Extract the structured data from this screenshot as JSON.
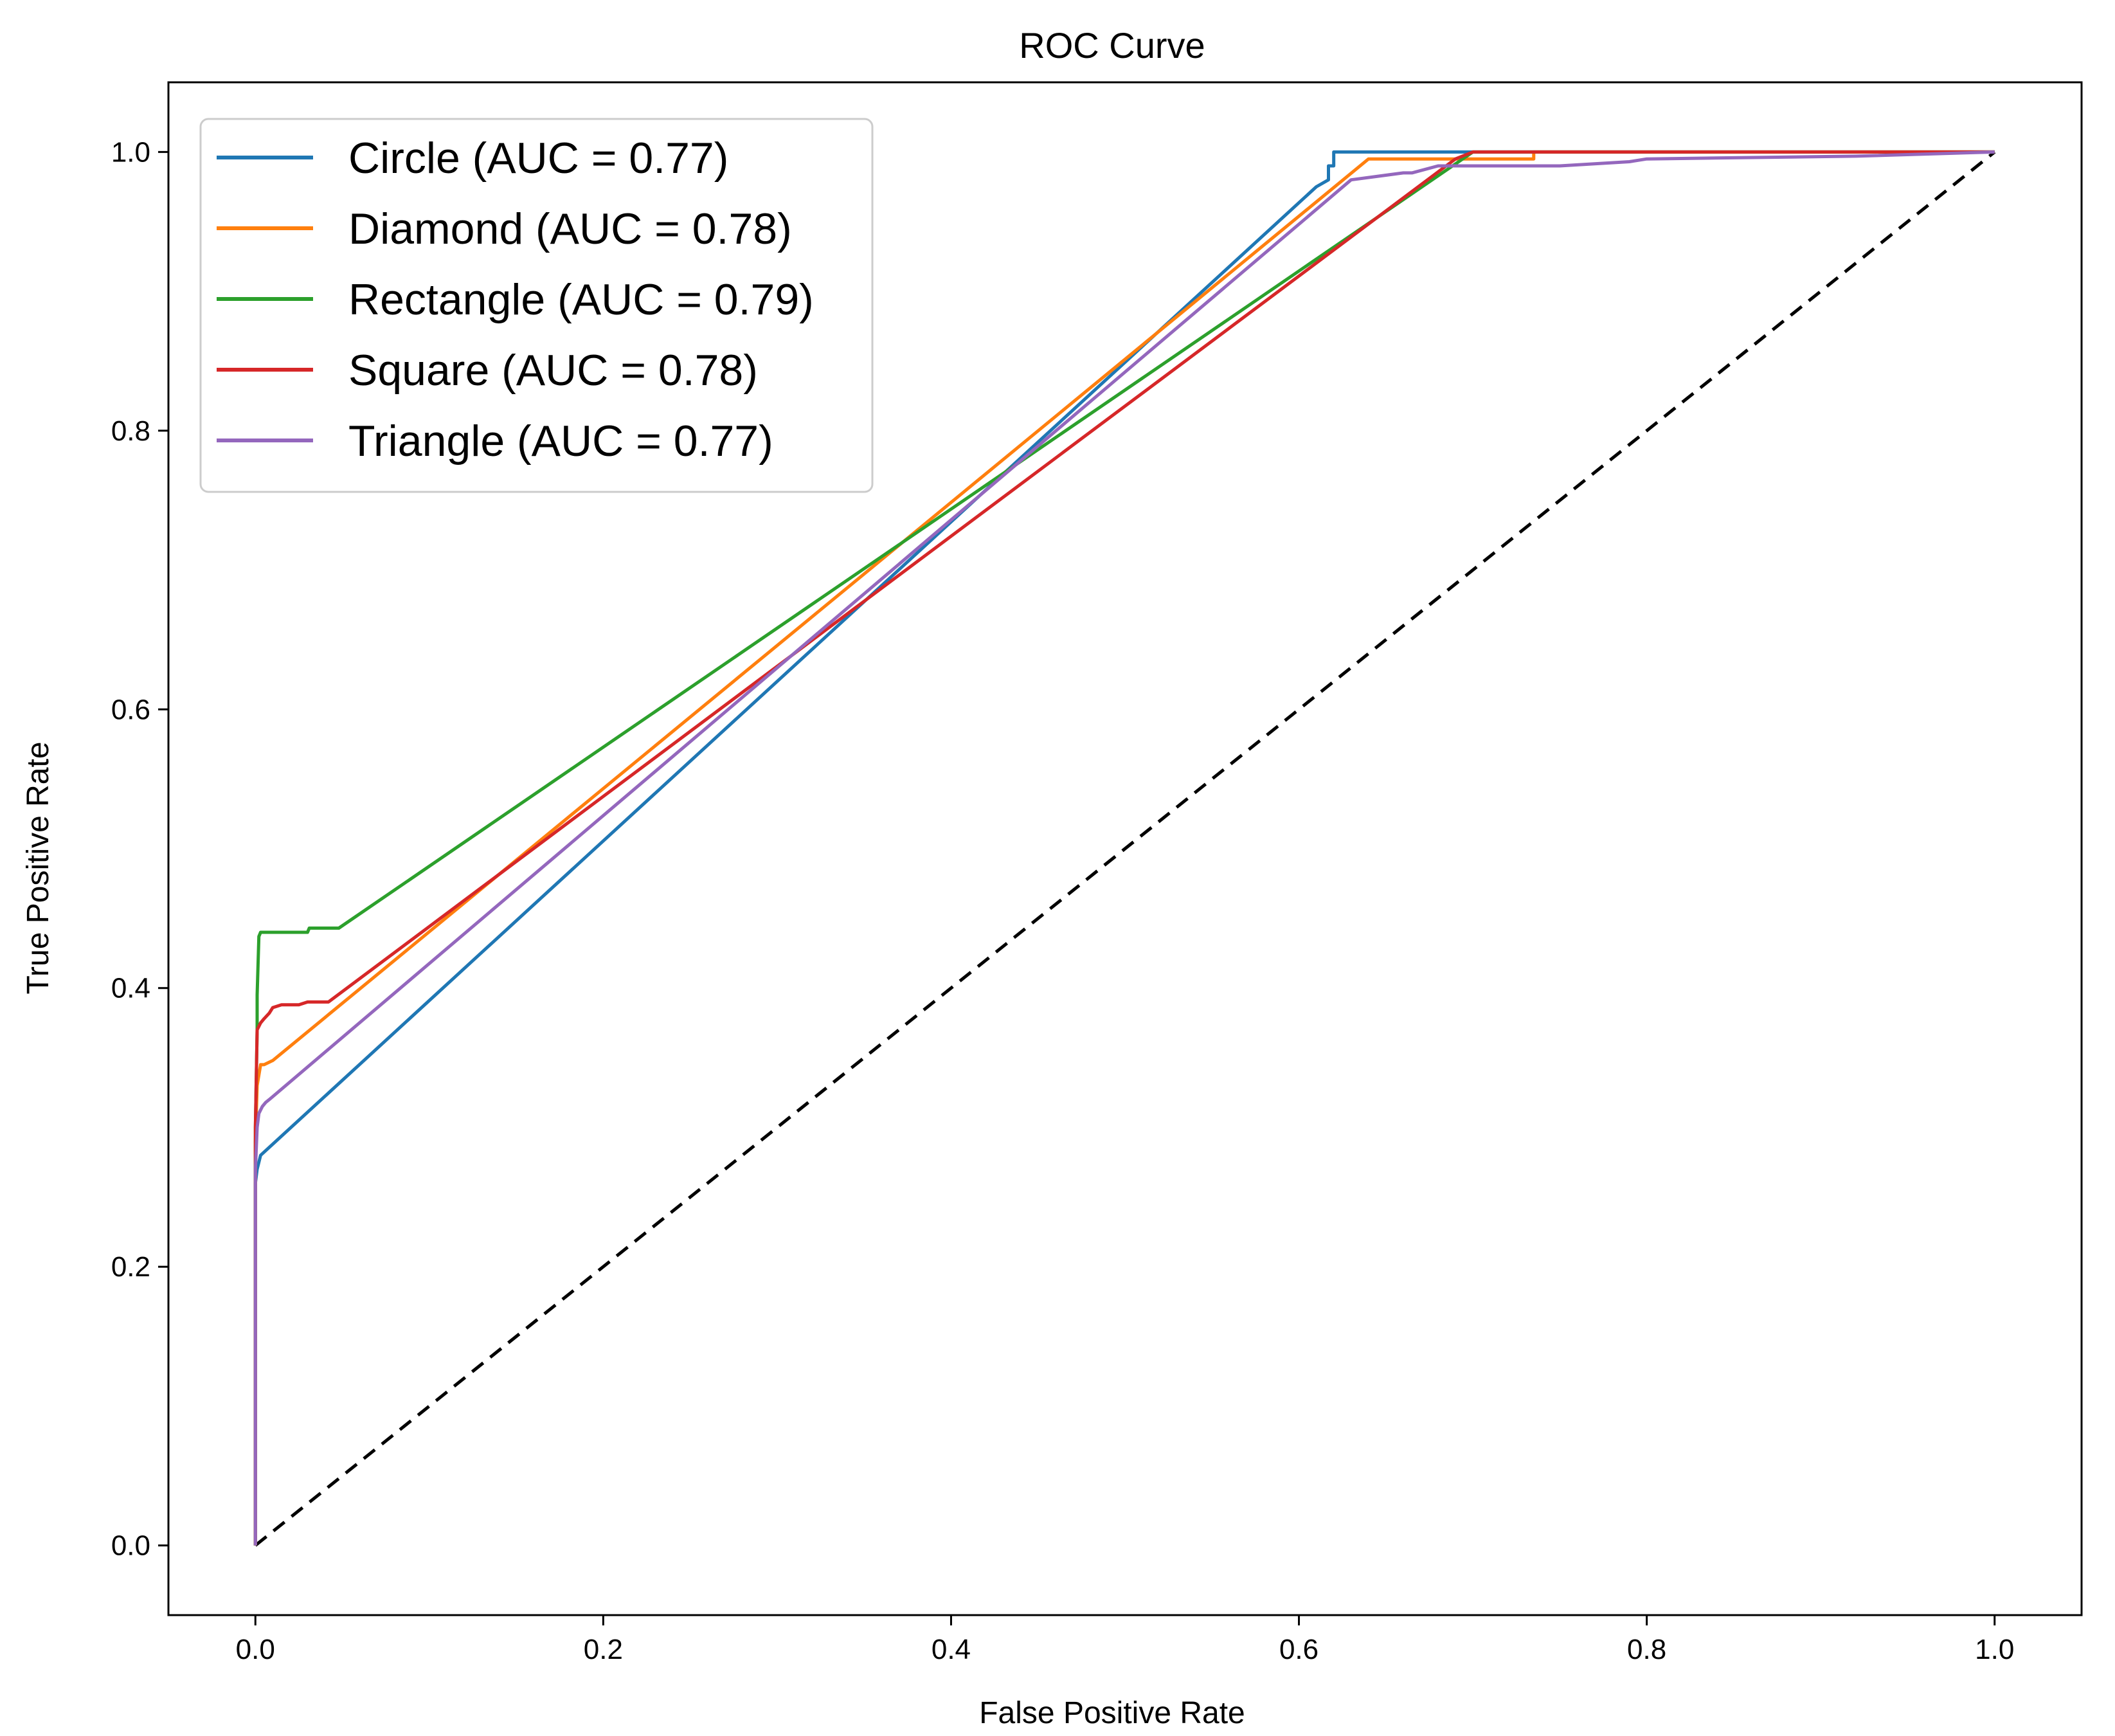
{
  "chart_data": {
    "type": "line",
    "title": "ROC Curve",
    "xlabel": "False Positive Rate",
    "ylabel": "True Positive Rate",
    "xlim": [
      -0.05,
      1.05
    ],
    "ylim": [
      -0.05,
      1.05
    ],
    "xticks": [
      0.0,
      0.2,
      0.4,
      0.6,
      0.8,
      1.0
    ],
    "yticks": [
      0.0,
      0.2,
      0.4,
      0.6,
      0.8,
      1.0
    ],
    "xtick_labels": [
      "0.0",
      "0.2",
      "0.4",
      "0.6",
      "0.8",
      "1.0"
    ],
    "ytick_labels": [
      "0.0",
      "0.2",
      "0.4",
      "0.6",
      "0.8",
      "1.0"
    ],
    "grid": false,
    "legend_position": "top-left",
    "series": [
      {
        "name": "Circle (AUC = 0.77)",
        "color": "#1f77b4",
        "x": [
          0,
          0,
          0.001,
          0.002,
          0.003,
          0.61,
          0.617,
          0.617,
          0.62,
          0.62,
          1.0
        ],
        "y": [
          0,
          0.26,
          0.27,
          0.275,
          0.28,
          0.975,
          0.98,
          0.99,
          0.99,
          1.0,
          1.0
        ]
      },
      {
        "name": "Diamond (AUC = 0.78)",
        "color": "#ff7f0e",
        "x": [
          0,
          0,
          0.001,
          0.003,
          0.005,
          0.01,
          0.64,
          0.645,
          0.7,
          0.735,
          0.735,
          1.0
        ],
        "y": [
          0,
          0.29,
          0.33,
          0.345,
          0.345,
          0.348,
          0.995,
          0.995,
          0.995,
          0.995,
          1.0,
          1.0
        ]
      },
      {
        "name": "Rectangle (AUC = 0.79)",
        "color": "#2ca02c",
        "x": [
          0,
          0,
          0.001,
          0.001,
          0.002,
          0.003,
          0.006,
          0.03,
          0.031,
          0.048,
          0.7,
          1.0
        ],
        "y": [
          0,
          0.3,
          0.37,
          0.395,
          0.437,
          0.44,
          0.44,
          0.44,
          0.443,
          0.443,
          1.0,
          1.0
        ]
      },
      {
        "name": "Square (AUC = 0.78)",
        "color": "#d62728",
        "x": [
          0,
          0,
          0.001,
          0.003,
          0.005,
          0.008,
          0.01,
          0.015,
          0.025,
          0.03,
          0.042,
          0.69,
          0.7,
          1.0
        ],
        "y": [
          0,
          0.3,
          0.37,
          0.375,
          0.378,
          0.382,
          0.386,
          0.388,
          0.388,
          0.39,
          0.39,
          0.995,
          1.0,
          1.0
        ]
      },
      {
        "name": "Triangle (AUC = 0.77)",
        "color": "#9467bd",
        "x": [
          0,
          0,
          0.001,
          0.002,
          0.004,
          0.006,
          0.008,
          0.63,
          0.66,
          0.665,
          0.68,
          0.75,
          0.79,
          0.8,
          0.92,
          1.0
        ],
        "y": [
          0,
          0.27,
          0.3,
          0.31,
          0.315,
          0.318,
          0.32,
          0.98,
          0.985,
          0.985,
          0.99,
          0.99,
          0.993,
          0.995,
          0.997,
          1.0
        ]
      },
      {
        "name": "Chance",
        "color": "#000000",
        "dashed": true,
        "in_legend": false,
        "x": [
          0,
          1
        ],
        "y": [
          0,
          1
        ]
      }
    ]
  }
}
